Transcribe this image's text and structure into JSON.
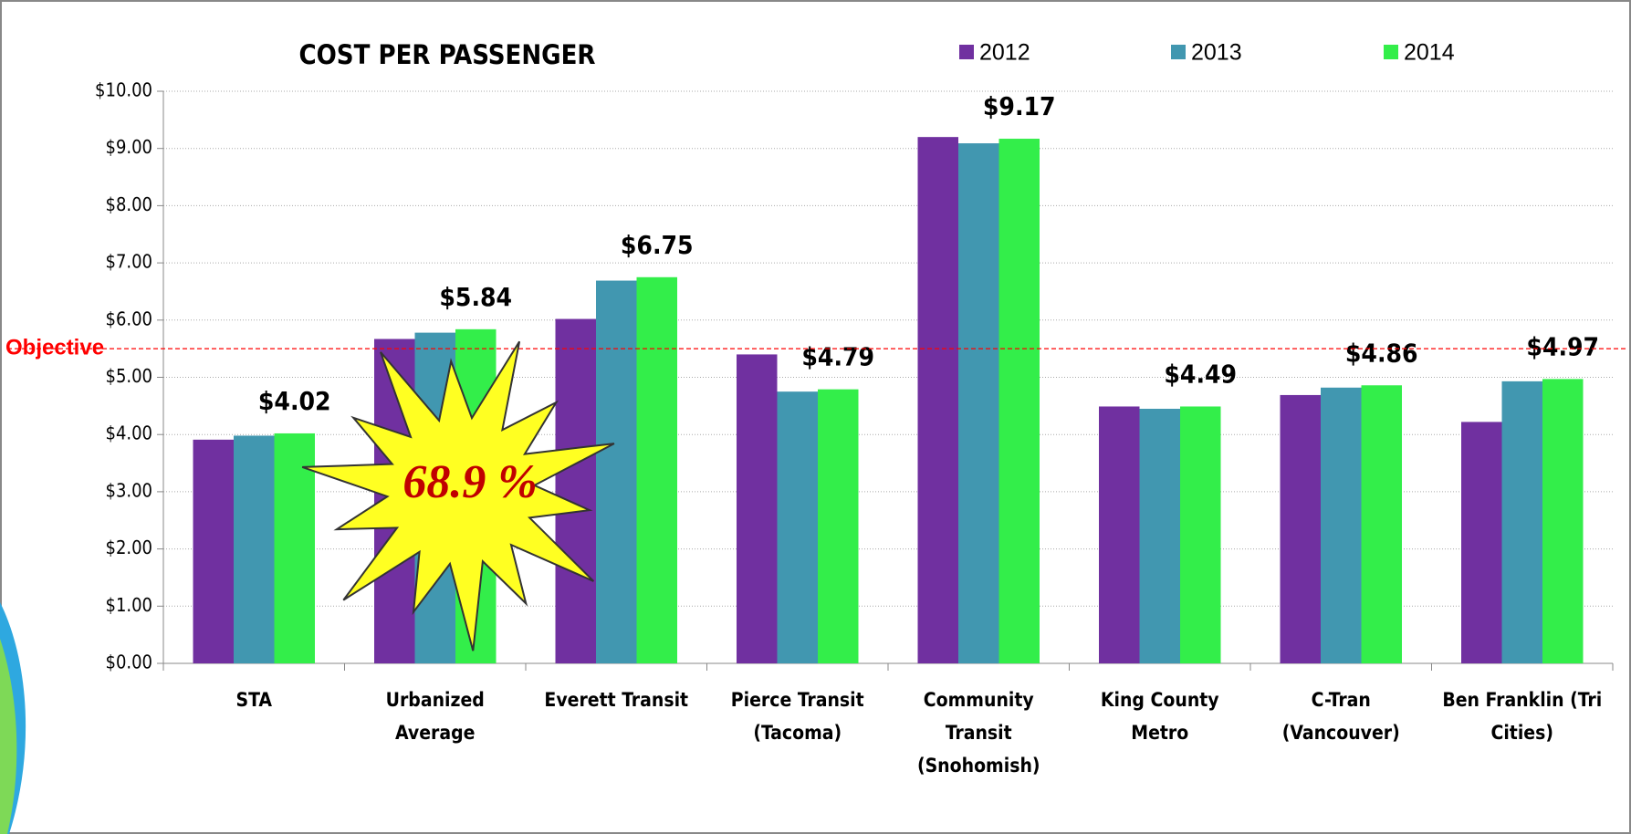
{
  "chart_data": {
    "type": "bar",
    "title": "COST PER PASSENGER",
    "categories": [
      "STA",
      "Urbanized Average",
      "Everett Transit",
      "Pierce Transit (Tacoma)",
      "Community Transit (Snohomish)",
      "King County Metro",
      "C-Tran (Vancouver)",
      "Ben Franklin (Tri Cities)"
    ],
    "series": [
      {
        "name": "2012",
        "color": "#7030a0",
        "values": [
          3.91,
          5.67,
          6.02,
          5.4,
          9.2,
          4.49,
          4.69,
          4.22
        ]
      },
      {
        "name": "2013",
        "color": "#4197b0",
        "values": [
          3.98,
          5.78,
          6.69,
          4.75,
          9.09,
          4.45,
          4.82,
          4.93
        ]
      },
      {
        "name": "2014",
        "color": "#33ee4a",
        "values": [
          4.02,
          5.84,
          6.75,
          4.79,
          9.17,
          4.49,
          4.86,
          4.97
        ],
        "value_labels": [
          "$4.02",
          "$5.84",
          "$6.75",
          "$4.79",
          "$9.17",
          "$4.49",
          "$4.86",
          "$4.97"
        ]
      }
    ],
    "ylim": [
      0,
      10
    ],
    "yticks": [
      {
        "value": 0,
        "label": "$0.00"
      },
      {
        "value": 1,
        "label": "$1.00"
      },
      {
        "value": 2,
        "label": "$2.00"
      },
      {
        "value": 3,
        "label": "$3.00"
      },
      {
        "value": 4,
        "label": "$4.00"
      },
      {
        "value": 5,
        "label": "$5.00"
      },
      {
        "value": 6,
        "label": "$6.00"
      },
      {
        "value": 7,
        "label": "$7.00"
      },
      {
        "value": 8,
        "label": "$8.00"
      },
      {
        "value": 9,
        "label": "$9.00"
      },
      {
        "value": 10,
        "label": "$10.00"
      }
    ],
    "grid": true,
    "objective": {
      "label": "Objective",
      "value": 5.5,
      "color": "#ff0000"
    },
    "annotation": "68.9 %"
  }
}
